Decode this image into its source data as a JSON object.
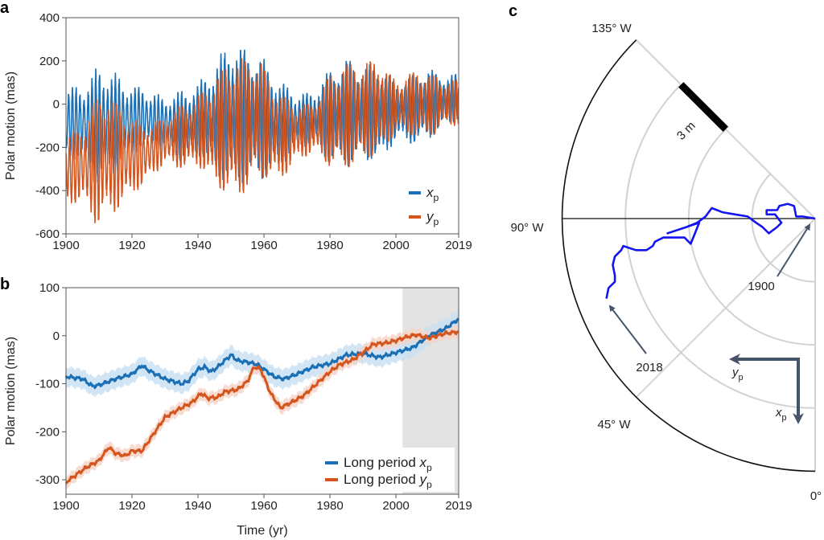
{
  "colors": {
    "xp": "#1a6fb5",
    "yp": "#d4561e",
    "xp_band": "#c9e1f3",
    "yp_band": "#f6d5c8",
    "pole_path": "#1414f0",
    "annotation": "#46546a",
    "highlight": "#e3e3e3"
  },
  "chart_data": [
    {
      "panel": "a",
      "type": "line",
      "ylabel": "Polar motion (mas)",
      "xlabel": "",
      "xlim": [
        1900,
        2019
      ],
      "ylim": [
        -600,
        400
      ],
      "xticks": [
        1900,
        1920,
        1940,
        1960,
        1980,
        2000,
        2019
      ],
      "yticks": [
        400,
        200,
        0,
        -200,
        -400,
        -600
      ],
      "legend_placement": "bottom-right",
      "series": [
        {
          "name": "x",
          "subscript": "p",
          "color_key": "xp",
          "oscillation_envelope_mas": {
            "x": [
              1900,
              1905,
              1910,
              1915,
              1920,
              1925,
              1930,
              1935,
              1940,
              1945,
              1950,
              1955,
              1960,
              1965,
              1970,
              1975,
              1980,
              1985,
              1990,
              1995,
              2000,
              2005,
              2010,
              2015,
              2019
            ],
            "y": [
              150,
              160,
              260,
              210,
              150,
              120,
              110,
              150,
              150,
              230,
              310,
              280,
              250,
              180,
              120,
              110,
              200,
              230,
              200,
              210,
              120,
              150,
              150,
              110,
              100
            ]
          }
        },
        {
          "name": "y",
          "subscript": "p",
          "color_key": "yp",
          "oscillation_envelope_mas": {
            "x": [
              1900,
              1905,
              1910,
              1915,
              1920,
              1925,
              1930,
              1935,
              1940,
              1945,
              1950,
              1955,
              1960,
              1965,
              1970,
              1975,
              1980,
              1985,
              1990,
              1995,
              2000,
              2005,
              2010,
              2015,
              2019
            ],
            "y": [
              140,
              170,
              290,
              240,
              160,
              120,
              100,
              140,
              150,
              230,
              300,
              290,
              240,
              190,
              120,
              110,
              200,
              230,
              210,
              210,
              110,
              140,
              140,
              100,
              100
            ]
          }
        }
      ]
    },
    {
      "panel": "b",
      "type": "line",
      "ylabel": "Polar motion (mas)",
      "xlabel": "Time (yr)",
      "xlim": [
        1900,
        2019
      ],
      "ylim": [
        -330,
        100
      ],
      "xticks": [
        1900,
        1920,
        1940,
        1960,
        1980,
        2000,
        2019
      ],
      "yticks": [
        100,
        0,
        -100,
        -200,
        -300
      ],
      "shaded_interval": [
        2002,
        2019
      ],
      "legend_placement": "bottom-right",
      "series": [
        {
          "name": "Long period x",
          "subscript": "p",
          "color_key": "xp",
          "uncertainty_mas": 20,
          "x": [
            1900,
            1905,
            1908,
            1910,
            1915,
            1920,
            1923,
            1925,
            1930,
            1935,
            1937,
            1940,
            1942,
            1944,
            1946,
            1950,
            1952,
            1955,
            1958,
            1960,
            1963,
            1966,
            1970,
            1975,
            1980,
            1985,
            1990,
            1995,
            2000,
            2005,
            2010,
            2015,
            2019
          ],
          "y": [
            -85,
            -90,
            -105,
            -103,
            -90,
            -80,
            -62,
            -72,
            -90,
            -100,
            -95,
            -70,
            -65,
            -75,
            -65,
            -40,
            -52,
            -55,
            -60,
            -70,
            -85,
            -90,
            -80,
            -65,
            -58,
            -40,
            -37,
            -45,
            -35,
            -25,
            0,
            15,
            35
          ]
        },
        {
          "name": "Long period y",
          "subscript": "p",
          "color_key": "yp",
          "uncertainty_mas": 13,
          "x": [
            1900,
            1903,
            1906,
            1910,
            1913,
            1915,
            1918,
            1920,
            1923,
            1926,
            1930,
            1935,
            1938,
            1941,
            1943,
            1946,
            1948,
            1952,
            1955,
            1957,
            1959,
            1962,
            1965,
            1968,
            1972,
            1976,
            1980,
            1983,
            1987,
            1990,
            1993,
            1997,
            2000,
            2003,
            2006,
            2010,
            2015,
            2019
          ],
          "y": [
            -305,
            -290,
            -275,
            -260,
            -232,
            -245,
            -250,
            -240,
            -240,
            -210,
            -170,
            -150,
            -140,
            -120,
            -130,
            -128,
            -117,
            -112,
            -95,
            -65,
            -70,
            -120,
            -150,
            -140,
            -125,
            -100,
            -75,
            -60,
            -50,
            -35,
            -18,
            -15,
            -10,
            -3,
            2,
            -5,
            5,
            8
          ]
        }
      ]
    },
    {
      "panel": "c",
      "type": "polar-path",
      "angle_labels": [
        "135° W",
        "90° W",
        "45° W",
        "0°"
      ],
      "ring_spacing_m": 3,
      "scale_bar_label": "3 m",
      "path_units": "m",
      "path_xp_m": [
        0,
        -0.1,
        -0.1,
        -0.6,
        -0.7,
        -0.6,
        -0.4,
        -0.4,
        -0.2,
        -0.2,
        0.2,
        0.4,
        0.7,
        0.4,
        0.2,
        -0.1,
        -0.2,
        -0.3,
        -0.5,
        -0.1,
        0.2,
        0.4,
        0.7,
        0.2,
        1.2,
        0.9,
        0.9,
        1.1,
        1.3,
        1.5,
        1.5,
        1.3,
        1.5,
        1.8,
        2.2,
        2.7,
        3.0,
        3.3,
        3.8
      ],
      "path_yp_m": [
        0,
        0.6,
        0.9,
        1.0,
        1.3,
        1.7,
        1.8,
        2.3,
        2.3,
        1.9,
        1.6,
        1.8,
        2.2,
        2.5,
        2.8,
        3.2,
        3.8,
        4.4,
        4.9,
        5.2,
        5.6,
        6.1,
        7.0,
        5.5,
        5.9,
        6.2,
        7.2,
        7.6,
        7.7,
        8.0,
        8.5,
        9.1,
        9.2,
        9.5,
        9.6,
        9.5,
        9.5,
        9.8,
        9.9
      ],
      "start_label": "1900",
      "end_label": "2018",
      "axis_labels": {
        "x": "x",
        "y": "y",
        "subscript": "p"
      }
    }
  ],
  "panel_letters": [
    "a",
    "b",
    "c"
  ]
}
